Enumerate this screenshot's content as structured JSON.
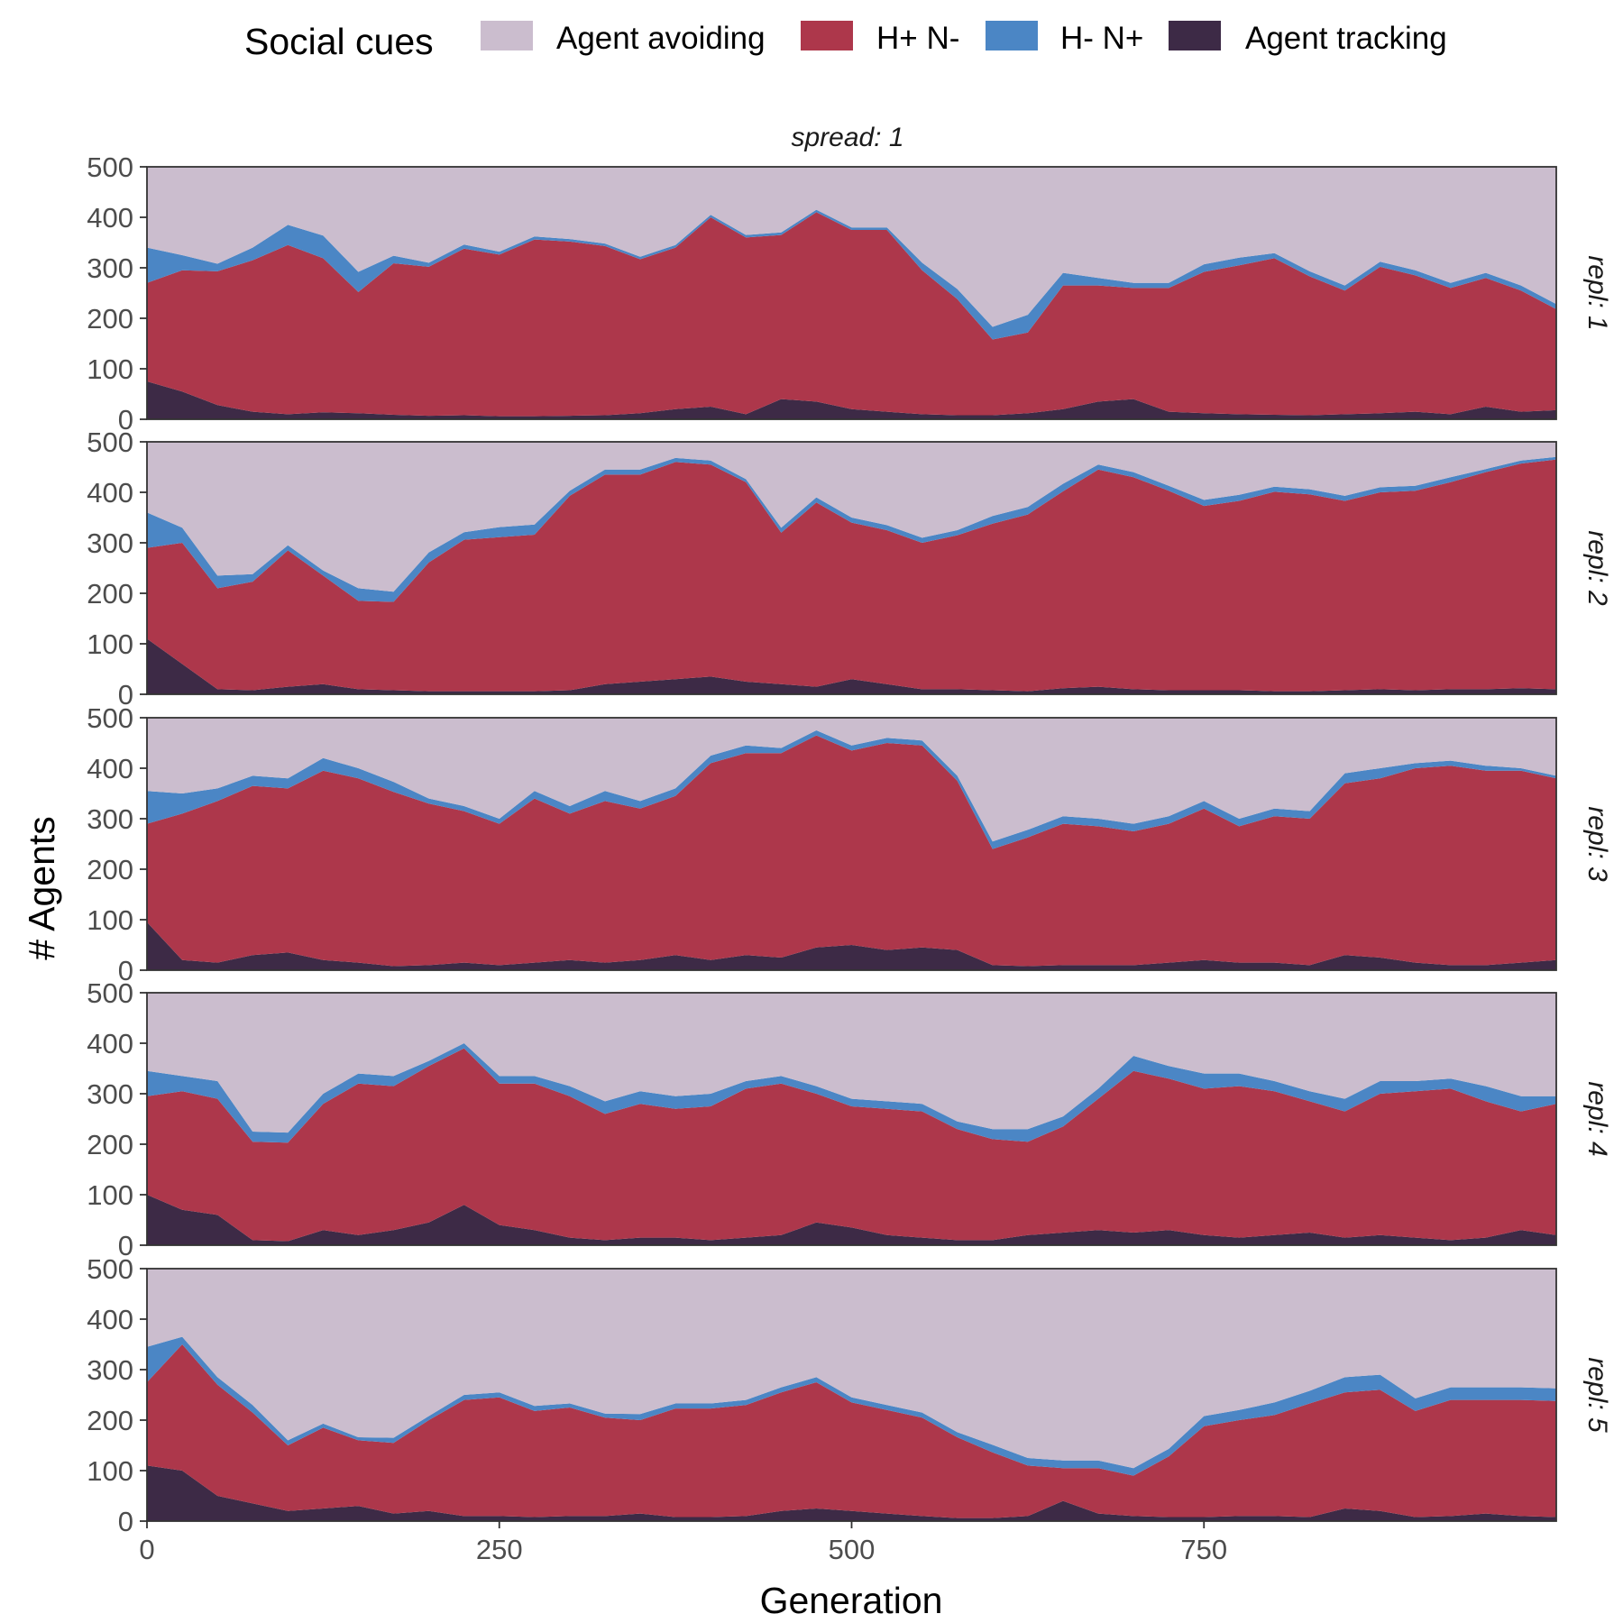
{
  "chart_data": {
    "type": "area",
    "stacked": true,
    "legend": {
      "title": "Social cues",
      "position": "top",
      "entries": [
        {
          "name": "Agent avoiding",
          "color": "#cbbdce"
        },
        {
          "name": "H+ N-",
          "color": "#ad374b"
        },
        {
          "name": "H- N+",
          "color": "#4b86c5"
        },
        {
          "name": "Agent tracking",
          "color": "#3d2a46"
        }
      ]
    },
    "column_strip": "spread: 1",
    "xlabel": "Generation",
    "ylabel": "# Agents",
    "xlim": [
      0,
      1000
    ],
    "ylim": [
      0,
      500
    ],
    "x_ticks": [
      0,
      250,
      500,
      750
    ],
    "y_ticks": [
      0,
      100,
      200,
      300,
      400,
      500
    ],
    "total_agents": 500,
    "grid": false,
    "x": [
      0,
      25,
      50,
      75,
      100,
      125,
      150,
      175,
      200,
      225,
      250,
      275,
      300,
      325,
      350,
      375,
      400,
      425,
      450,
      475,
      500,
      525,
      550,
      575,
      600,
      625,
      650,
      675,
      700,
      725,
      750,
      775,
      800,
      825,
      850,
      875,
      900,
      925,
      950,
      975,
      1000
    ],
    "panels": [
      {
        "strip": "repl: 1",
        "series": [
          {
            "name": "Agent tracking",
            "values": [
              75,
              55,
              28,
              15,
              10,
              14,
              12,
              9,
              7,
              8,
              6,
              6,
              7,
              8,
              12,
              20,
              25,
              10,
              40,
              35,
              20,
              15,
              10,
              8,
              8,
              12,
              20,
              35,
              40,
              15,
              12,
              10,
              9,
              8,
              10,
              12,
              15,
              10,
              25,
              15,
              18
            ]
          },
          {
            "name": "H+ N-",
            "values": [
              195,
              240,
              265,
              300,
              335,
              305,
              240,
              300,
              295,
              330,
              320,
              350,
              345,
              335,
              305,
              320,
              375,
              350,
              325,
              375,
              355,
              360,
              285,
              230,
              150,
              160,
              245,
              230,
              220,
              245,
              280,
              295,
              310,
              275,
              245,
              290,
              270,
              250,
              255,
              240,
              200
            ]
          },
          {
            "name": "H- N+",
            "values": [
              70,
              30,
              15,
              25,
              40,
              45,
              40,
              15,
              8,
              8,
              6,
              6,
              5,
              5,
              5,
              5,
              5,
              5,
              5,
              5,
              5,
              5,
              15,
              20,
              25,
              35,
              25,
              15,
              10,
              10,
              15,
              15,
              10,
              10,
              10,
              10,
              10,
              10,
              10,
              10,
              10
            ]
          },
          {
            "name": "Agent avoiding",
            "values": [
              160,
              175,
              192,
              160,
              115,
              136,
              208,
              176,
              190,
              154,
              168,
              138,
              143,
              152,
              178,
              155,
              95,
              135,
              130,
              85,
              120,
              120,
              190,
              242,
              317,
              293,
              210,
              220,
              230,
              230,
              193,
              180,
              171,
              207,
              235,
              188,
              205,
              230,
              210,
              235,
              272
            ]
          }
        ]
      },
      {
        "strip": "repl: 2",
        "series": [
          {
            "name": "Agent tracking",
            "values": [
              110,
              60,
              10,
              8,
              15,
              20,
              10,
              8,
              6,
              6,
              6,
              6,
              8,
              20,
              25,
              30,
              35,
              25,
              20,
              15,
              30,
              20,
              10,
              10,
              8,
              6,
              12,
              15,
              10,
              8,
              8,
              8,
              6,
              6,
              8,
              10,
              8,
              10,
              10,
              12,
              10
            ]
          },
          {
            "name": "H+ N-",
            "values": [
              180,
              240,
              200,
              215,
              270,
              215,
              175,
              175,
              255,
              300,
              305,
              310,
              385,
              415,
              410,
              430,
              420,
              395,
              300,
              365,
              310,
              305,
              290,
              305,
              330,
              350,
              390,
              430,
              420,
              395,
              365,
              375,
              395,
              390,
              375,
              390,
              395,
              410,
              430,
              445,
              455
            ]
          },
          {
            "name": "H- N+",
            "values": [
              70,
              30,
              25,
              15,
              10,
              10,
              25,
              20,
              20,
              15,
              20,
              20,
              10,
              10,
              10,
              8,
              8,
              6,
              10,
              10,
              10,
              10,
              10,
              10,
              15,
              15,
              15,
              10,
              10,
              10,
              12,
              12,
              10,
              10,
              10,
              10,
              10,
              10,
              6,
              6,
              5
            ]
          },
          {
            "name": "Agent avoiding",
            "values": [
              140,
              170,
              265,
              262,
              205,
              255,
              290,
              297,
              219,
              179,
              169,
              164,
              97,
              55,
              55,
              32,
              37,
              74,
              170,
              110,
              150,
              165,
              190,
              175,
              147,
              129,
              83,
              45,
              60,
              87,
              115,
              105,
              89,
              94,
              107,
              90,
              87,
              70,
              54,
              37,
              30
            ]
          }
        ]
      },
      {
        "strip": "repl: 3",
        "series": [
          {
            "name": "Agent tracking",
            "values": [
              95,
              20,
              15,
              30,
              35,
              20,
              15,
              8,
              10,
              15,
              10,
              15,
              20,
              15,
              20,
              30,
              20,
              30,
              25,
              45,
              50,
              40,
              45,
              40,
              10,
              8,
              10,
              10,
              10,
              15,
              20,
              15,
              15,
              10,
              30,
              25,
              15,
              10,
              10,
              15,
              20
            ]
          },
          {
            "name": "H+ N-",
            "values": [
              195,
              290,
              320,
              335,
              325,
              375,
              365,
              345,
              320,
              300,
              280,
              325,
              290,
              320,
              300,
              315,
              390,
              400,
              405,
              420,
              385,
              410,
              400,
              335,
              230,
              255,
              280,
              275,
              265,
              275,
              300,
              270,
              290,
              290,
              340,
              355,
              385,
              395,
              385,
              380,
              360
            ]
          },
          {
            "name": "H- N+",
            "values": [
              65,
              40,
              25,
              20,
              20,
              25,
              20,
              20,
              10,
              10,
              10,
              15,
              15,
              20,
              15,
              15,
              15,
              15,
              10,
              10,
              10,
              10,
              10,
              10,
              15,
              15,
              15,
              15,
              15,
              15,
              15,
              15,
              15,
              15,
              20,
              20,
              10,
              10,
              10,
              5,
              5
            ]
          },
          {
            "name": "Agent avoiding",
            "values": [
              145,
              150,
              140,
              115,
              120,
              80,
              100,
              127,
              160,
              175,
              200,
              145,
              175,
              145,
              165,
              140,
              75,
              55,
              60,
              25,
              55,
              40,
              45,
              115,
              245,
              222,
              195,
              200,
              210,
              195,
              165,
              200,
              180,
              185,
              110,
              100,
              90,
              85,
              95,
              100,
              115
            ]
          }
        ]
      },
      {
        "strip": "repl: 4",
        "series": [
          {
            "name": "Agent tracking",
            "values": [
              100,
              70,
              60,
              10,
              8,
              30,
              20,
              30,
              45,
              80,
              40,
              30,
              15,
              10,
              15,
              15,
              10,
              15,
              20,
              45,
              35,
              20,
              15,
              10,
              10,
              20,
              25,
              30,
              25,
              30,
              20,
              15,
              20,
              25,
              15,
              20,
              15,
              10,
              15,
              30,
              20
            ]
          },
          {
            "name": "H+ N-",
            "values": [
              195,
              235,
              230,
              195,
              195,
              250,
              300,
              285,
              310,
              310,
              280,
              290,
              280,
              250,
              265,
              255,
              265,
              295,
              300,
              255,
              240,
              250,
              250,
              220,
              200,
              185,
              210,
              260,
              320,
              300,
              290,
              300,
              285,
              260,
              250,
              280,
              290,
              300,
              270,
              235,
              260
            ]
          },
          {
            "name": "H- N+",
            "values": [
              50,
              30,
              35,
              20,
              20,
              20,
              20,
              20,
              10,
              10,
              15,
              15,
              20,
              25,
              25,
              25,
              25,
              15,
              15,
              15,
              15,
              15,
              15,
              15,
              20,
              25,
              20,
              20,
              30,
              25,
              30,
              25,
              20,
              20,
              25,
              25,
              20,
              20,
              30,
              30,
              15
            ]
          },
          {
            "name": "Agent avoiding",
            "values": [
              155,
              165,
              175,
              275,
              277,
              200,
              160,
              165,
              135,
              100,
              165,
              165,
              185,
              215,
              195,
              205,
              200,
              175,
              165,
              185,
              210,
              215,
              220,
              255,
              270,
              270,
              245,
              190,
              125,
              145,
              160,
              160,
              175,
              195,
              210,
              175,
              175,
              170,
              185,
              205,
              205
            ]
          }
        ]
      },
      {
        "strip": "repl: 5",
        "series": [
          {
            "name": "Agent tracking",
            "values": [
              110,
              100,
              50,
              35,
              20,
              25,
              30,
              15,
              20,
              10,
              10,
              8,
              10,
              10,
              15,
              8,
              8,
              10,
              20,
              25,
              20,
              15,
              10,
              6,
              6,
              10,
              40,
              15,
              10,
              8,
              8,
              10,
              10,
              8,
              25,
              20,
              8,
              10,
              15,
              10,
              8
            ]
          },
          {
            "name": "H+ N-",
            "values": [
              165,
              250,
              220,
              180,
              130,
              160,
              130,
              140,
              180,
              230,
              235,
              210,
              215,
              195,
              185,
              215,
              215,
              220,
              235,
              250,
              215,
              205,
              195,
              160,
              130,
              100,
              65,
              90,
              80,
              120,
              180,
              190,
              200,
              225,
              230,
              240,
              210,
              230,
              225,
              230,
              230
            ]
          },
          {
            "name": "H- N+",
            "values": [
              70,
              15,
              15,
              15,
              10,
              8,
              6,
              10,
              8,
              10,
              10,
              10,
              8,
              8,
              12,
              10,
              10,
              10,
              10,
              10,
              10,
              10,
              10,
              10,
              15,
              15,
              15,
              15,
              15,
              15,
              20,
              20,
              25,
              25,
              30,
              30,
              25,
              25,
              25,
              25,
              25
            ]
          },
          {
            "name": "Agent avoiding",
            "values": [
              155,
              135,
              215,
              270,
              340,
              307,
              334,
              335,
              292,
              250,
              245,
              272,
              267,
              287,
              288,
              267,
              267,
              260,
              235,
              215,
              255,
              270,
              285,
              324,
              349,
              375,
              380,
              380,
              395,
              357,
              292,
              280,
              265,
              242,
              215,
              210,
              257,
              235,
              235,
              235,
              237
            ]
          }
        ]
      }
    ]
  }
}
